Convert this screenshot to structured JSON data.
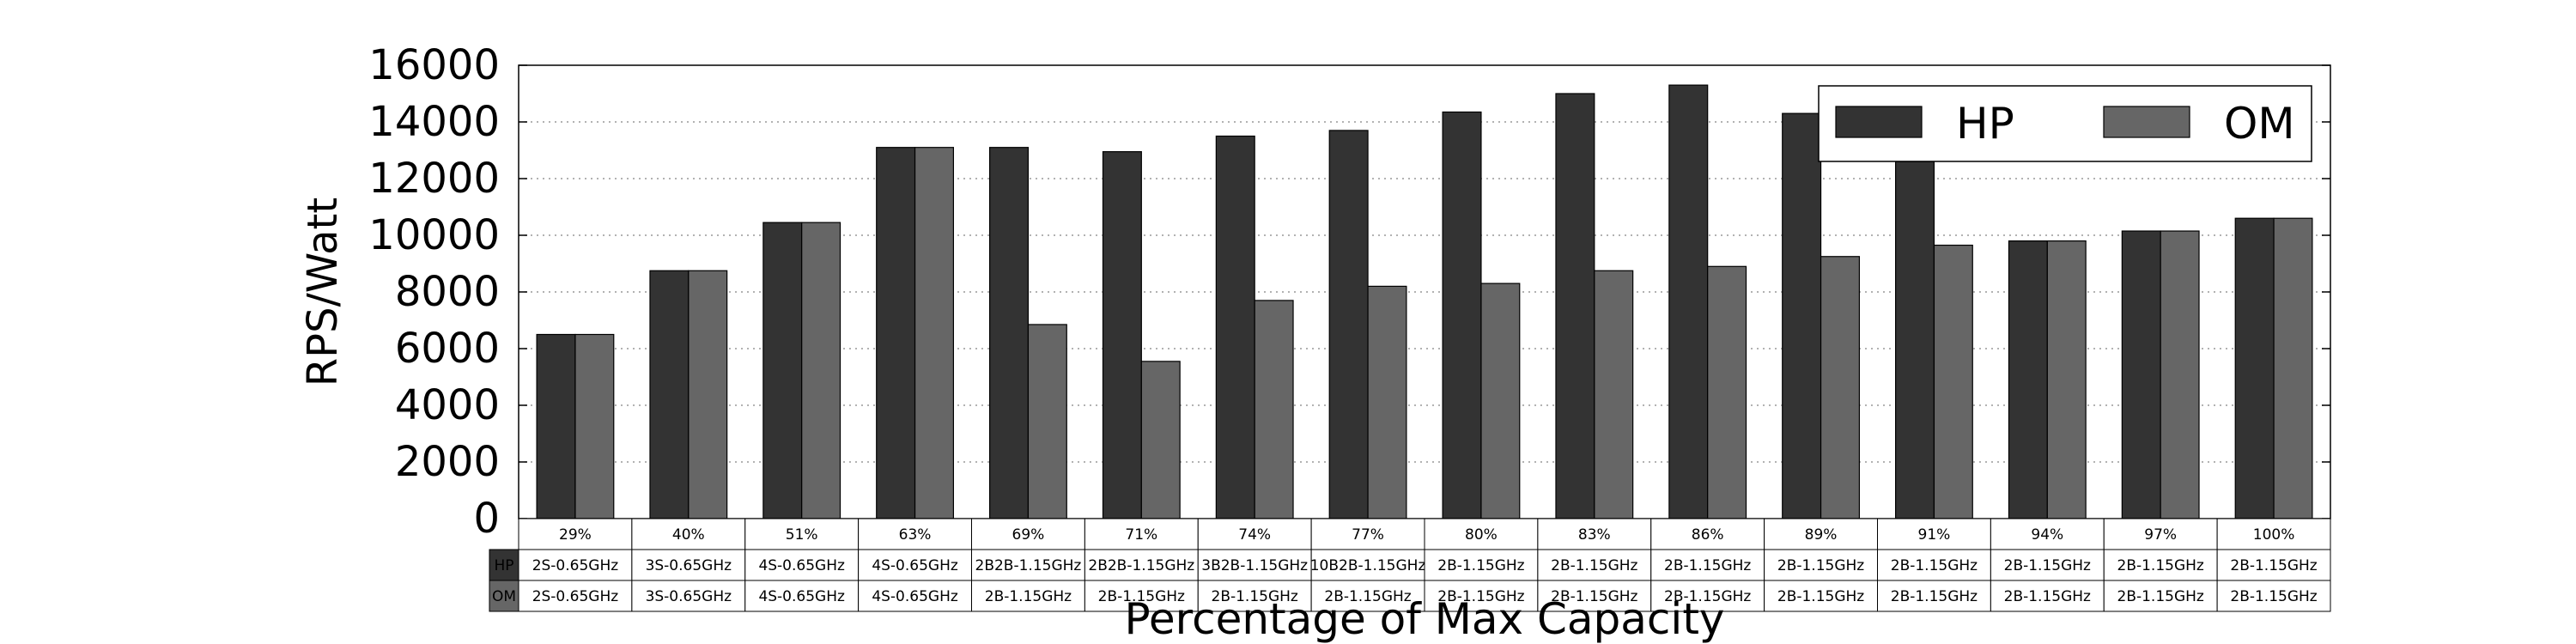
{
  "chart_data": {
    "type": "bar",
    "title": "",
    "xlabel": "Percentage of Max Capacity",
    "ylabel": "RPS/Watt",
    "ylim": [
      0,
      16000
    ],
    "yticks": [
      0,
      2000,
      4000,
      6000,
      8000,
      10000,
      12000,
      14000,
      16000
    ],
    "grid": "horizontal dotted",
    "legend_placement": "top-right",
    "categories": [
      "29%",
      "40%",
      "51%",
      "63%",
      "69%",
      "71%",
      "74%",
      "77%",
      "80%",
      "83%",
      "86%",
      "89%",
      "91%",
      "94%",
      "97%",
      "100%"
    ],
    "series": [
      {
        "name": "HP",
        "color": "#333333",
        "values": [
          6500,
          8750,
          10450,
          13100,
          13100,
          12950,
          13500,
          13700,
          14350,
          15000,
          15300,
          14300,
          12600,
          9800,
          10150,
          10600
        ]
      },
      {
        "name": "OM",
        "color": "#666666",
        "values": [
          6500,
          8750,
          10450,
          13100,
          6850,
          5550,
          7700,
          8200,
          8300,
          8750,
          8900,
          9250,
          9650,
          9800,
          10150,
          10600
        ]
      }
    ],
    "table": {
      "rows": [
        {
          "label": "HP",
          "color": "#333333",
          "cells": [
            "2S-0.65GHz",
            "3S-0.65GHz",
            "4S-0.65GHz",
            "4S-0.65GHz",
            "2B2B-1.15GHz",
            "2B2B-1.15GHz",
            "3B2B-1.15GHz",
            "10B2B-1.15GHz",
            "2B-1.15GHz",
            "2B-1.15GHz",
            "2B-1.15GHz",
            "2B-1.15GHz",
            "2B-1.15GHz",
            "2B-1.15GHz",
            "2B-1.15GHz",
            "2B-1.15GHz"
          ]
        },
        {
          "label": "OM",
          "color": "#666666",
          "cells": [
            "2S-0.65GHz",
            "3S-0.65GHz",
            "4S-0.65GHz",
            "4S-0.65GHz",
            "2B-1.15GHz",
            "2B-1.15GHz",
            "2B-1.15GHz",
            "2B-1.15GHz",
            "2B-1.15GHz",
            "2B-1.15GHz",
            "2B-1.15GHz",
            "2B-1.15GHz",
            "2B-1.15GHz",
            "2B-1.15GHz",
            "2B-1.15GHz",
            "2B-1.15GHz"
          ]
        }
      ]
    }
  }
}
